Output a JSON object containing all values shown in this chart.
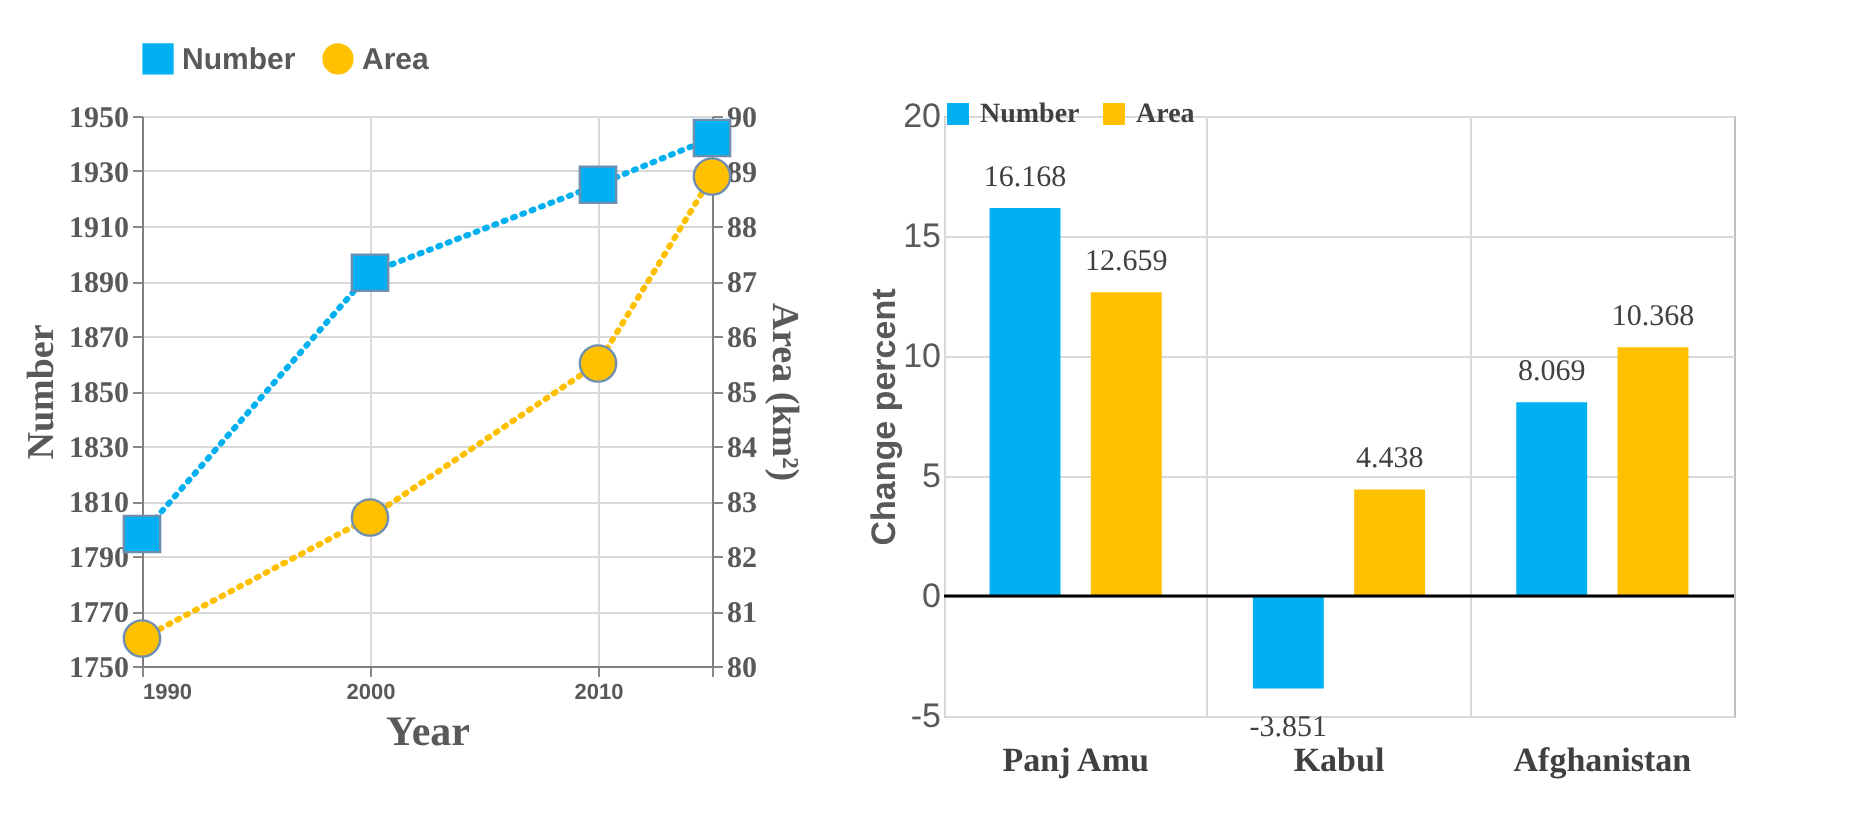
{
  "chart_data": [
    {
      "type": "line",
      "xlabel": "Year",
      "ylabel": "Number",
      "y2label": "Area (km²)",
      "x": [
        1990,
        2000,
        2010,
        2015
      ],
      "xlim": [
        1990,
        2015
      ],
      "xticks": [
        1990,
        2000,
        2010,
        {
          "value": 2015,
          "label": null
        }
      ],
      "ylim": [
        1750,
        1950
      ],
      "yticks": [
        1750,
        1770,
        1790,
        1810,
        1830,
        1850,
        1870,
        1890,
        1910,
        1930,
        1950
      ],
      "y2lim": [
        80,
        90
      ],
      "y2ticks": [
        80,
        81,
        82,
        83,
        84,
        85,
        86,
        87,
        88,
        89,
        90
      ],
      "grid": true,
      "legend": "top",
      "line_style": "dotted",
      "series": [
        {
          "name": "Number",
          "color": "#00b0f0",
          "marker": "square",
          "values": [
            1798,
            1893,
            1925,
            1942
          ]
        },
        {
          "name": "Area",
          "color": "#ffc000",
          "marker": "circle",
          "axis": "y2",
          "values": [
            80.5,
            82.7,
            85.5,
            88.9
          ]
        }
      ]
    },
    {
      "type": "bar",
      "ylabel": "Change percent",
      "categories": [
        "Panj Amu",
        "Kabul",
        "Afghanistan"
      ],
      "ylim": [
        -5,
        20
      ],
      "yticks": [
        -5,
        0,
        5,
        10,
        15,
        20
      ],
      "grid": true,
      "legend": "top",
      "data_labels": true,
      "ref_lines": [
        {
          "axis": "y",
          "value": 0,
          "color": "#000000"
        }
      ],
      "series": [
        {
          "name": "Number",
          "color": "#00b0f0",
          "values": [
            16.168,
            -3.851,
            8.069
          ]
        },
        {
          "name": "Area",
          "color": "#ffc000",
          "values": [
            12.659,
            4.438,
            10.368
          ]
        }
      ]
    }
  ]
}
